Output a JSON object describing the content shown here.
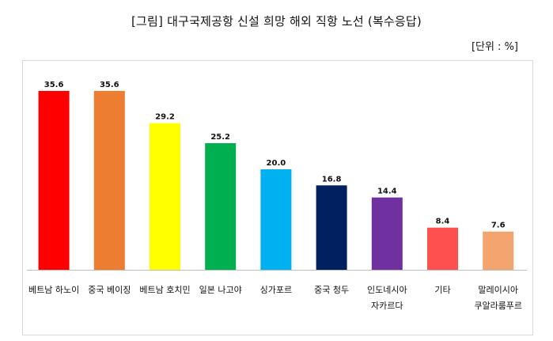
{
  "title": "[그림] 대구국제공항 신설 희망 해외 직항 노선 (복수응답)",
  "unit_label": "[단위 : %]",
  "chart_data": {
    "type": "bar",
    "categories": [
      [
        "베트남 하노이"
      ],
      [
        "중국 베이징"
      ],
      [
        "베트남 호치민"
      ],
      [
        "일본 나고야"
      ],
      [
        "싱가포르"
      ],
      [
        "중국 청두"
      ],
      [
        "인도네시아",
        "자카르다"
      ],
      [
        "기타"
      ],
      [
        "말레이시아",
        "쿠알라룸푸르"
      ]
    ],
    "values": [
      35.6,
      35.6,
      29.2,
      25.2,
      20.0,
      16.8,
      14.4,
      8.4,
      7.6
    ],
    "value_labels": [
      "35.6",
      "35.6",
      "29.2",
      "25.2",
      "20.0",
      "16.8",
      "14.4",
      "8.4",
      "7.6"
    ],
    "colors": [
      "#ff0000",
      "#ed7d31",
      "#ffff00",
      "#00b050",
      "#00b0f0",
      "#002060",
      "#7030a0",
      "#ff5050",
      "#f4a46e"
    ],
    "ylim": [
      0,
      40
    ],
    "grid": false,
    "legend": "none"
  }
}
